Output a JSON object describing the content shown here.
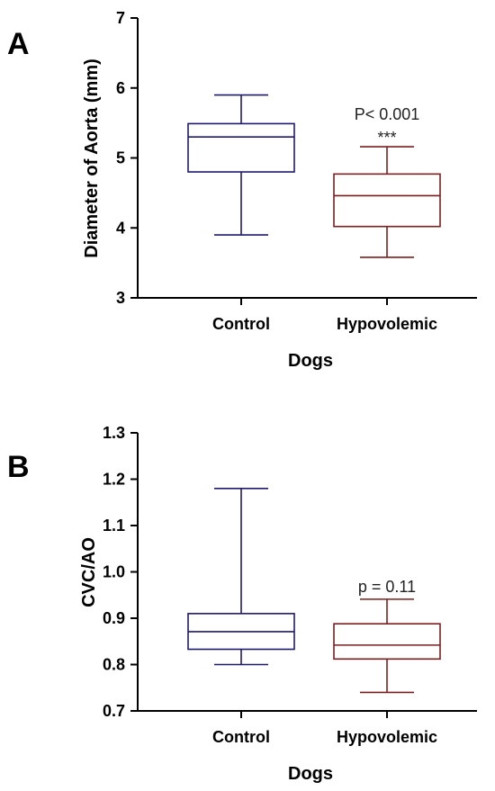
{
  "chart_data": [
    {
      "type": "box",
      "panel_label": "A",
      "ylabel": "Diameter of Aorta (mm)",
      "xlabel": "Dogs",
      "ylim": [
        3,
        7
      ],
      "yticks": [
        "3",
        "4",
        "5",
        "6",
        "7"
      ],
      "categories": [
        "Control",
        "Hypovolemic"
      ],
      "series": [
        {
          "color": "#1f1a6e",
          "min": 3.9,
          "q1": 4.8,
          "median": 5.3,
          "q3": 5.49,
          "max": 5.9
        },
        {
          "color": "#7a1f1f",
          "min": 3.58,
          "q1": 4.02,
          "median": 4.46,
          "q3": 4.77,
          "max": 5.16
        }
      ],
      "annotations": [
        {
          "category_index": 1,
          "lines": [
            "P< 0.001",
            "***"
          ]
        }
      ]
    },
    {
      "type": "box",
      "panel_label": "B",
      "ylabel": "CVC/AO",
      "xlabel": "Dogs",
      "ylim": [
        0.7,
        1.3
      ],
      "yticks": [
        "0.7",
        "0.8",
        "0.9",
        "1.0",
        "1.1",
        "1.2",
        "1.3"
      ],
      "categories": [
        "Control",
        "Hypovolemic"
      ],
      "series": [
        {
          "color": "#1f1a6e",
          "min": 0.8,
          "q1": 0.833,
          "median": 0.871,
          "q3": 0.91,
          "max": 1.18
        },
        {
          "color": "#7a1f1f",
          "min": 0.74,
          "q1": 0.812,
          "median": 0.842,
          "q3": 0.888,
          "max": 0.941
        }
      ],
      "annotations": [
        {
          "category_index": 1,
          "lines": [
            "p = 0.11"
          ]
        }
      ]
    }
  ]
}
